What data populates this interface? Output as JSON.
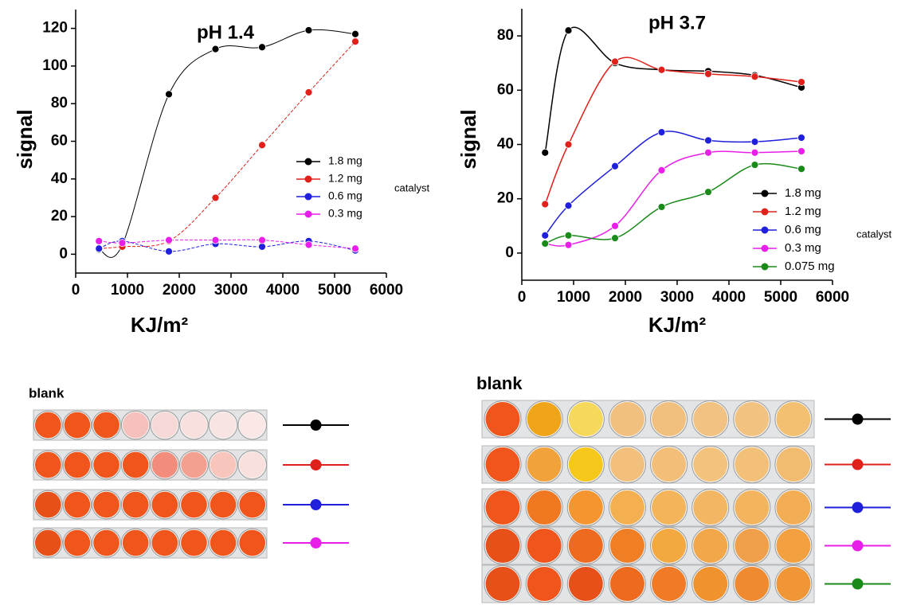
{
  "chart_data": [
    {
      "type": "line",
      "title": "pH 1.4",
      "xlabel": "KJ/m²",
      "ylabel": "signal",
      "legend_note": "catalyst",
      "x": [
        450,
        900,
        1800,
        2700,
        3600,
        4500,
        5400
      ],
      "xlim": [
        0,
        6000
      ],
      "ylim": [
        -10,
        130
      ],
      "xticks": [
        0,
        1000,
        2000,
        3000,
        4000,
        5000,
        6000
      ],
      "yticks": [
        0,
        20,
        40,
        60,
        80,
        100,
        120
      ],
      "series": [
        {
          "name": "1.8 mg",
          "color": "#000000",
          "values": [
            2.5,
            5,
            85,
            109,
            110,
            119,
            117
          ]
        },
        {
          "name": "1.2 mg",
          "color": "#e0211b",
          "values": [
            3,
            4,
            7,
            30,
            58,
            86,
            113
          ]
        },
        {
          "name": "0.6 mg",
          "color": "#1f1fdc",
          "values": [
            3,
            7,
            1.5,
            5.5,
            4,
            7,
            2
          ]
        },
        {
          "name": "0.3 mg",
          "color": "#e81fe8",
          "values": [
            7,
            6,
            7.5,
            7.5,
            7.5,
            5,
            3
          ]
        }
      ]
    },
    {
      "type": "line",
      "title": "pH 3.7",
      "xlabel": "KJ/m²",
      "ylabel": "signal",
      "legend_note": "catalyst",
      "x": [
        450,
        900,
        1800,
        2700,
        3600,
        4500,
        5400
      ],
      "xlim": [
        0,
        6000
      ],
      "ylim": [
        -10,
        90
      ],
      "xticks": [
        0,
        1000,
        2000,
        3000,
        4000,
        5000,
        6000
      ],
      "yticks": [
        0,
        20,
        40,
        60,
        80
      ],
      "series": [
        {
          "name": "1.8 mg",
          "color": "#000000",
          "values": [
            37,
            82,
            70,
            67.5,
            67,
            65.5,
            61
          ]
        },
        {
          "name": "1.2 mg",
          "color": "#e0211b",
          "values": [
            18,
            40,
            70.5,
            67.5,
            66,
            65,
            63
          ]
        },
        {
          "name": "0.6 mg",
          "color": "#1f1fdc",
          "values": [
            6.5,
            17.5,
            32,
            44.5,
            41.5,
            41,
            42.5
          ]
        },
        {
          "name": "0.3 mg",
          "color": "#e81fe8",
          "values": [
            3.5,
            3,
            10,
            30.5,
            37,
            37,
            37.5
          ]
        },
        {
          "name": "0.075 mg",
          "color": "#1a8a1a",
          "values": [
            3.5,
            6.5,
            5.5,
            17,
            22.5,
            32.5,
            31
          ]
        }
      ]
    }
  ],
  "photos": [
    {
      "label": "blank"
    },
    {
      "label": "blank"
    }
  ]
}
